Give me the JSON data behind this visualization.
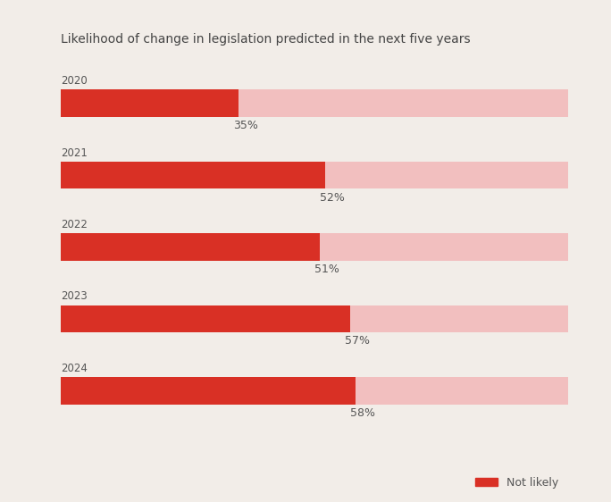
{
  "title": "Likelihood of change in legislation predicted in the next five years",
  "years": [
    "2020",
    "2021",
    "2022",
    "2023",
    "2024"
  ],
  "values": [
    35,
    52,
    51,
    57,
    58
  ],
  "bar_color": "#D93025",
  "bg_color_bar": "#F2BFBF",
  "background_color": "#F2EDE8",
  "label_color": "#555555",
  "title_color": "#444444",
  "legend_label": "Not likely",
  "max_value": 100
}
